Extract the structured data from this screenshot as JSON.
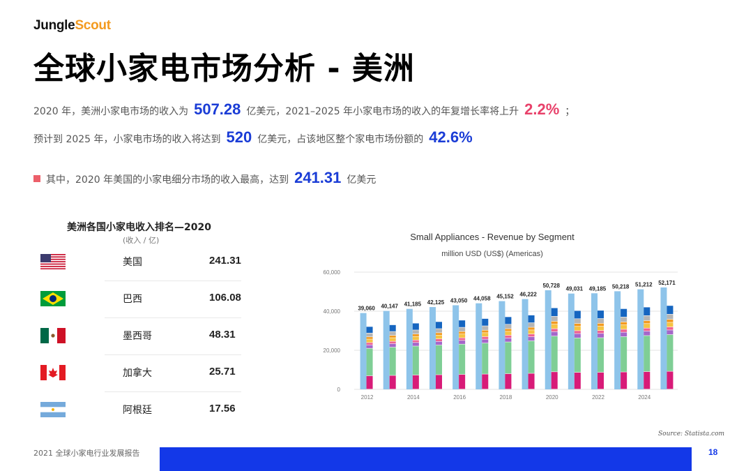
{
  "brand": {
    "part1": "Jungle",
    "part2": "Scout"
  },
  "title": "全球小家电市场分析 - 美洲",
  "summary": {
    "l1_a": "2020 年，美洲小家电市场的收入为",
    "l1_val": "507.28",
    "l1_b": "亿美元，2021–2025 年小家电市场的收入的年复增长率将上升",
    "l1_rate": "2.2%",
    "l1_c": "；",
    "l2_a": "预计到 2025 年，小家电市场的收入将达到",
    "l2_val": "520",
    "l2_b": "亿美元，占该地区整个家电市场份额的",
    "l2_share": "42.6%",
    "l3_a": "其中，2020 年美国的小家电细分市场的收入最高，达到",
    "l3_val": "241.31",
    "l3_b": "亿美元"
  },
  "ranking": {
    "title": "美洲各国小家电收入排名—2020",
    "subtitle": "(收入 / 亿)",
    "rows": [
      {
        "country": "美国",
        "value": "241.31",
        "flag": "us-flag-icon"
      },
      {
        "country": "巴西",
        "value": "106.08",
        "flag": "brazil-flag-icon"
      },
      {
        "country": "墨西哥",
        "value": "48.31",
        "flag": "mexico-flag-icon"
      },
      {
        "country": "加拿大",
        "value": "25.71",
        "flag": "canada-flag-icon"
      },
      {
        "country": "阿根廷",
        "value": "17.56",
        "flag": "argentina-flag-icon"
      }
    ]
  },
  "chart_data": {
    "type": "bar",
    "stacked": true,
    "title": "Small Appliances - Revenue by Segment",
    "subtitle": "million USD (US$) (Americas)",
    "ylim": [
      0,
      60000
    ],
    "yticks": [
      0,
      20000,
      40000,
      60000
    ],
    "ytick_labels": [
      "0",
      "20,000",
      "40,000",
      "60,000"
    ],
    "x": [
      2012,
      2013,
      2014,
      2015,
      2016,
      2017,
      2018,
      2019,
      2020,
      2021,
      2022,
      2023,
      2024,
      2025
    ],
    "xtick_labels": [
      "2012",
      "",
      "2014",
      "",
      "2016",
      "",
      "2018",
      "",
      "2020",
      "",
      "2022",
      "",
      "2024",
      ""
    ],
    "totals": [
      39060,
      40147,
      41185,
      42125,
      43050,
      44058,
      45152,
      46222,
      50728,
      49031,
      49185,
      50218,
      51212,
      52171
    ],
    "total_labels": [
      "39,060",
      "40,147",
      "41,185",
      "42,125",
      "43,050",
      "44,058",
      "45,152",
      "46,222",
      "50,728",
      "49,031",
      "49,185",
      "50,218",
      "51,212",
      "52,171"
    ],
    "grid": true,
    "colors": {
      "segment_1": "#d81b78",
      "segment_2": "#7fce95",
      "segment_3": "#a566c9",
      "segment_4": "#f06292",
      "segment_5": "#f6c343",
      "segment_6": "#f39a1f",
      "segment_7": "#b5b5b5",
      "segment_8": "#1565c0",
      "background_bar": "#8ec4ea"
    }
  },
  "source": "Source: Statista.com",
  "footer": {
    "text": "2021 全球小家电行业发展报告",
    "page": "18"
  }
}
